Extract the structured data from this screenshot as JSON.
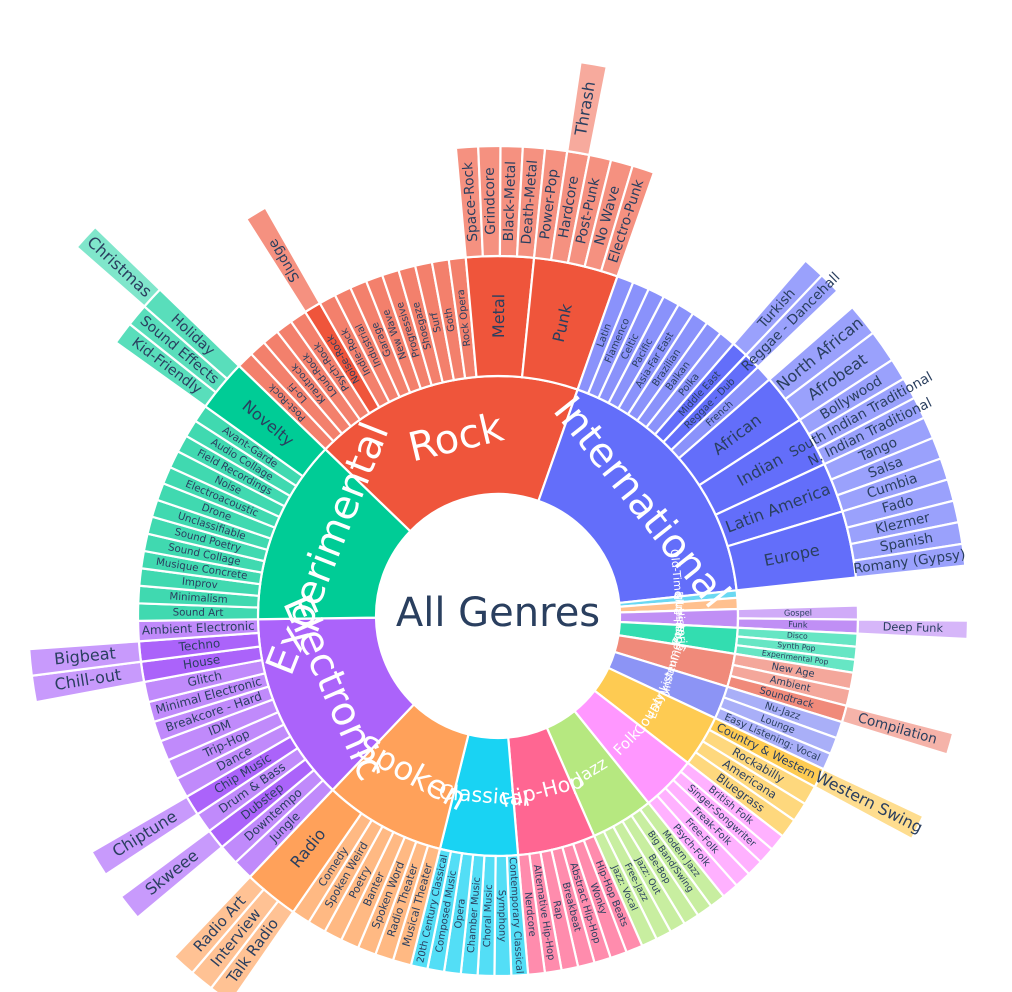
{
  "chart_data": {
    "type": "sunburst",
    "title": "",
    "root_label": "All Genres",
    "colors": {
      "Rock": "#ef553b",
      "International": "#636efa",
      "Experimental": "#00cc96",
      "Electronic": "#ab63fa",
      "Spoken": "#ffa15a",
      "Classical": "#19d3f3",
      "Hip-Hop": "#ff6692",
      "Jazz": "#b6e880",
      "Folk": "#ff97ff",
      "Country": "#fecb52",
      "Easy Listening": "#8c94f5",
      "Instrumental": "#f08a7a",
      "Pop": "#33ddb0",
      "Soul-RnB": "#c08ff5",
      "Blues": "#ffc08e",
      "Old-Time / Historic": "#6ad8f2"
    },
    "genres": [
      {
        "name": "Rock",
        "children": [
          {
            "name": "Post-Rock"
          },
          {
            "name": "Lo-Fi"
          },
          {
            "name": "Krautrock"
          },
          {
            "name": "Loud-Rock"
          },
          {
            "name": "Psych-Rock"
          },
          {
            "name": "Noise-Rock",
            "children": [
              {
                "name": "Sludge"
              }
            ]
          },
          {
            "name": "Indie-Rock"
          },
          {
            "name": "Industrial"
          },
          {
            "name": "Garage"
          },
          {
            "name": "New Wave"
          },
          {
            "name": "Progressive"
          },
          {
            "name": "Shoegaze"
          },
          {
            "name": "Surf"
          },
          {
            "name": "Goth"
          },
          {
            "name": "Rock Opera"
          },
          {
            "name": "Metal",
            "children": [
              {
                "name": "Space-Rock"
              },
              {
                "name": "Grindcore"
              },
              {
                "name": "Black-Metal"
              },
              {
                "name": "Death-Metal"
              }
            ]
          },
          {
            "name": "Punk",
            "children": [
              {
                "name": "Power-Pop"
              },
              {
                "name": "Hardcore",
                "children": [
                  {
                    "name": "Thrash"
                  }
                ]
              },
              {
                "name": "Post-Punk"
              },
              {
                "name": "No Wave"
              },
              {
                "name": "Electro-Punk"
              }
            ]
          }
        ]
      },
      {
        "name": "International",
        "children": [
          {
            "name": "Latin"
          },
          {
            "name": "Flamenco"
          },
          {
            "name": "Celtic"
          },
          {
            "name": "Pacific"
          },
          {
            "name": "Asia-Far East"
          },
          {
            "name": "Brazilian"
          },
          {
            "name": "Balkan"
          },
          {
            "name": "Polka"
          },
          {
            "name": "Middle East",
            "children": [
              {
                "name": "Turkish"
              }
            ]
          },
          {
            "name": "Reggae - Dub",
            "children": [
              {
                "name": "Reggae - Dancehall"
              }
            ]
          },
          {
            "name": "French"
          },
          {
            "name": "African",
            "children": [
              {
                "name": "North African"
              },
              {
                "name": "Afrobeat"
              }
            ]
          },
          {
            "name": "Indian",
            "children": [
              {
                "name": "Bollywood"
              },
              {
                "name": "South Indian Traditional"
              },
              {
                "name": "N. Indian Traditional"
              }
            ]
          },
          {
            "name": "Latin America",
            "children": [
              {
                "name": "Tango"
              },
              {
                "name": "Salsa"
              },
              {
                "name": "Cumbia"
              }
            ]
          },
          {
            "name": "Europe",
            "children": [
              {
                "name": "Fado"
              },
              {
                "name": "Klezmer"
              },
              {
                "name": "Spanish"
              },
              {
                "name": "Romany (Gypsy)"
              }
            ]
          }
        ]
      },
      {
        "name": "Old-Time / Historic"
      },
      {
        "name": "Blues"
      },
      {
        "name": "Soul-RnB",
        "children": [
          {
            "name": "Gospel"
          },
          {
            "name": "Funk",
            "children": [
              {
                "name": "Deep Funk"
              }
            ]
          }
        ]
      },
      {
        "name": "Pop",
        "children": [
          {
            "name": "Disco"
          },
          {
            "name": "Synth Pop"
          },
          {
            "name": "Experimental Pop"
          }
        ]
      },
      {
        "name": "Instrumental",
        "children": [
          {
            "name": "New Age"
          },
          {
            "name": "Ambient"
          },
          {
            "name": "Soundtrack",
            "children": [
              {
                "name": "Compilation"
              }
            ]
          }
        ]
      },
      {
        "name": "Easy Listening",
        "children": [
          {
            "name": "Nu-Jazz"
          },
          {
            "name": "Lounge"
          },
          {
            "name": "Easy Listening: Vocal"
          }
        ]
      },
      {
        "name": "Country",
        "children": [
          {
            "name": "Country & Western",
            "children": [
              {
                "name": "Western Swing"
              }
            ]
          },
          {
            "name": "Rockabilly"
          },
          {
            "name": "Americana"
          },
          {
            "name": "Bluegrass"
          }
        ]
      },
      {
        "name": "Folk",
        "children": [
          {
            "name": "British Folk"
          },
          {
            "name": "Singer-Songwriter"
          },
          {
            "name": "Freak-Folk"
          },
          {
            "name": "Free-Folk"
          },
          {
            "name": "Psych-Folk"
          }
        ]
      },
      {
        "name": "Jazz",
        "children": [
          {
            "name": "Modern Jazz"
          },
          {
            "name": "Big Band/Swing"
          },
          {
            "name": "Be-Bop"
          },
          {
            "name": "Jazz: Out"
          },
          {
            "name": "Free-Jazz"
          },
          {
            "name": "Jazz: Vocal"
          }
        ]
      },
      {
        "name": "Hip-Hop",
        "children": [
          {
            "name": "Hip-Hop Beats"
          },
          {
            "name": "Wonky"
          },
          {
            "name": "Abstract Hip-Hop"
          },
          {
            "name": "Breakbeat"
          },
          {
            "name": "Rap"
          },
          {
            "name": "Alternative Hip-Hop"
          },
          {
            "name": "Nerdcore"
          }
        ]
      },
      {
        "name": "Classical",
        "children": [
          {
            "name": "Contemporary Classical"
          },
          {
            "name": "Symphony"
          },
          {
            "name": "Choral Music"
          },
          {
            "name": "Chamber Music"
          },
          {
            "name": "Opera"
          },
          {
            "name": "Composed Music"
          },
          {
            "name": "20th Century Classical"
          }
        ]
      },
      {
        "name": "Spoken",
        "children": [
          {
            "name": "Musical Theater"
          },
          {
            "name": "Radio Theater"
          },
          {
            "name": "Spoken Word"
          },
          {
            "name": "Banter"
          },
          {
            "name": "Poetry"
          },
          {
            "name": "Spoken Weird"
          },
          {
            "name": "Comedy"
          },
          {
            "name": "Radio",
            "children": [
              {
                "name": "Talk Radio"
              },
              {
                "name": "Interview"
              },
              {
                "name": "Radio Art"
              }
            ]
          }
        ]
      },
      {
        "name": "Electronic",
        "children": [
          {
            "name": "Jungle"
          },
          {
            "name": "Downtempo"
          },
          {
            "name": "Dubstep",
            "children": [
              {
                "name": "Skweee"
              }
            ]
          },
          {
            "name": "Drum & Bass"
          },
          {
            "name": "Chip Music",
            "children": [
              {
                "name": "Chiptune"
              }
            ]
          },
          {
            "name": "Dance"
          },
          {
            "name": "Trip-Hop"
          },
          {
            "name": "IDM"
          },
          {
            "name": "Breakcore - Hard"
          },
          {
            "name": "Minimal Electronic"
          },
          {
            "name": "Glitch"
          },
          {
            "name": "House",
            "children": [
              {
                "name": "Chill-out"
              }
            ]
          },
          {
            "name": "Techno",
            "children": [
              {
                "name": "Bigbeat"
              }
            ]
          },
          {
            "name": "Ambient Electronic"
          }
        ]
      },
      {
        "name": "Experimental",
        "children": [
          {
            "name": "Sound Art"
          },
          {
            "name": "Minimalism"
          },
          {
            "name": "Improv"
          },
          {
            "name": "Musique Concrete"
          },
          {
            "name": "Sound Collage"
          },
          {
            "name": "Sound Poetry"
          },
          {
            "name": "Unclassifiable"
          },
          {
            "name": "Drone"
          },
          {
            "name": "Electroacoustic"
          },
          {
            "name": "Noise"
          },
          {
            "name": "Field Recordings"
          },
          {
            "name": "Audio Collage"
          },
          {
            "name": "Avant-Garde"
          },
          {
            "name": "Novelty",
            "children": [
              {
                "name": "Kid-Friendly"
              },
              {
                "name": "Sound Effects"
              },
              {
                "name": "Holiday",
                "children": [
                  {
                    "name": "Christmas"
                  }
                ]
              }
            ]
          }
        ]
      }
    ]
  }
}
